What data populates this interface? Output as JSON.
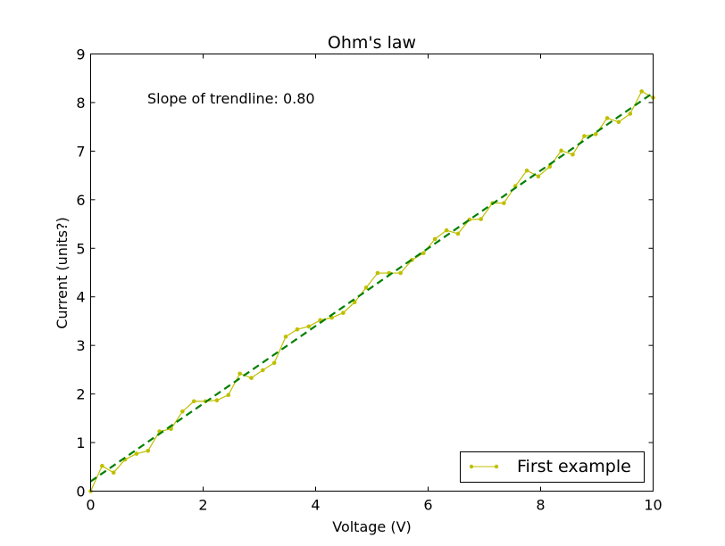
{
  "chart_data": {
    "type": "line",
    "title": "Ohm's law",
    "xlabel": "Voltage (V)",
    "ylabel": "Current (units?)",
    "xlim": [
      0,
      10
    ],
    "ylim": [
      0,
      9
    ],
    "xticks": [
      "0",
      "2",
      "4",
      "6",
      "8",
      "10"
    ],
    "yticks": [
      "0",
      "1",
      "2",
      "3",
      "4",
      "5",
      "6",
      "7",
      "8",
      "9"
    ],
    "grid": false,
    "legend_position": "lower-right",
    "annotation": "Slope of trendline: 0.80",
    "series": [
      {
        "name": "First example",
        "color": "#bfbf00",
        "marker": "dot",
        "x": [
          0.0,
          0.204,
          0.408,
          0.612,
          0.816,
          1.02,
          1.224,
          1.429,
          1.633,
          1.837,
          2.041,
          2.245,
          2.449,
          2.653,
          2.857,
          3.061,
          3.265,
          3.469,
          3.673,
          3.878,
          4.082,
          4.286,
          4.49,
          4.694,
          4.898,
          5.102,
          5.306,
          5.51,
          5.714,
          5.918,
          6.122,
          6.327,
          6.531,
          6.735,
          6.939,
          7.143,
          7.347,
          7.551,
          7.755,
          7.959,
          8.163,
          8.367,
          8.571,
          8.776,
          8.98,
          9.184,
          9.388,
          9.592,
          9.796,
          10.0
        ],
        "y": [
          0.0,
          0.52,
          0.38,
          0.65,
          0.77,
          0.83,
          1.23,
          1.28,
          1.64,
          1.85,
          1.85,
          1.87,
          1.98,
          2.42,
          2.33,
          2.49,
          2.64,
          3.18,
          3.33,
          3.39,
          3.52,
          3.57,
          3.67,
          3.89,
          4.19,
          4.49,
          4.49,
          4.49,
          4.76,
          4.9,
          5.19,
          5.37,
          5.3,
          5.59,
          5.6,
          5.93,
          5.93,
          6.28,
          6.6,
          6.48,
          6.68,
          7.01,
          6.93,
          7.31,
          7.35,
          7.68,
          7.6,
          7.77,
          8.23,
          8.1
        ]
      }
    ],
    "trendline": {
      "color": "#007f00",
      "style": "dashed",
      "slope": 0.8,
      "intercept": 0.2,
      "x": [
        0,
        10
      ],
      "y": [
        0.2,
        8.2
      ]
    }
  }
}
